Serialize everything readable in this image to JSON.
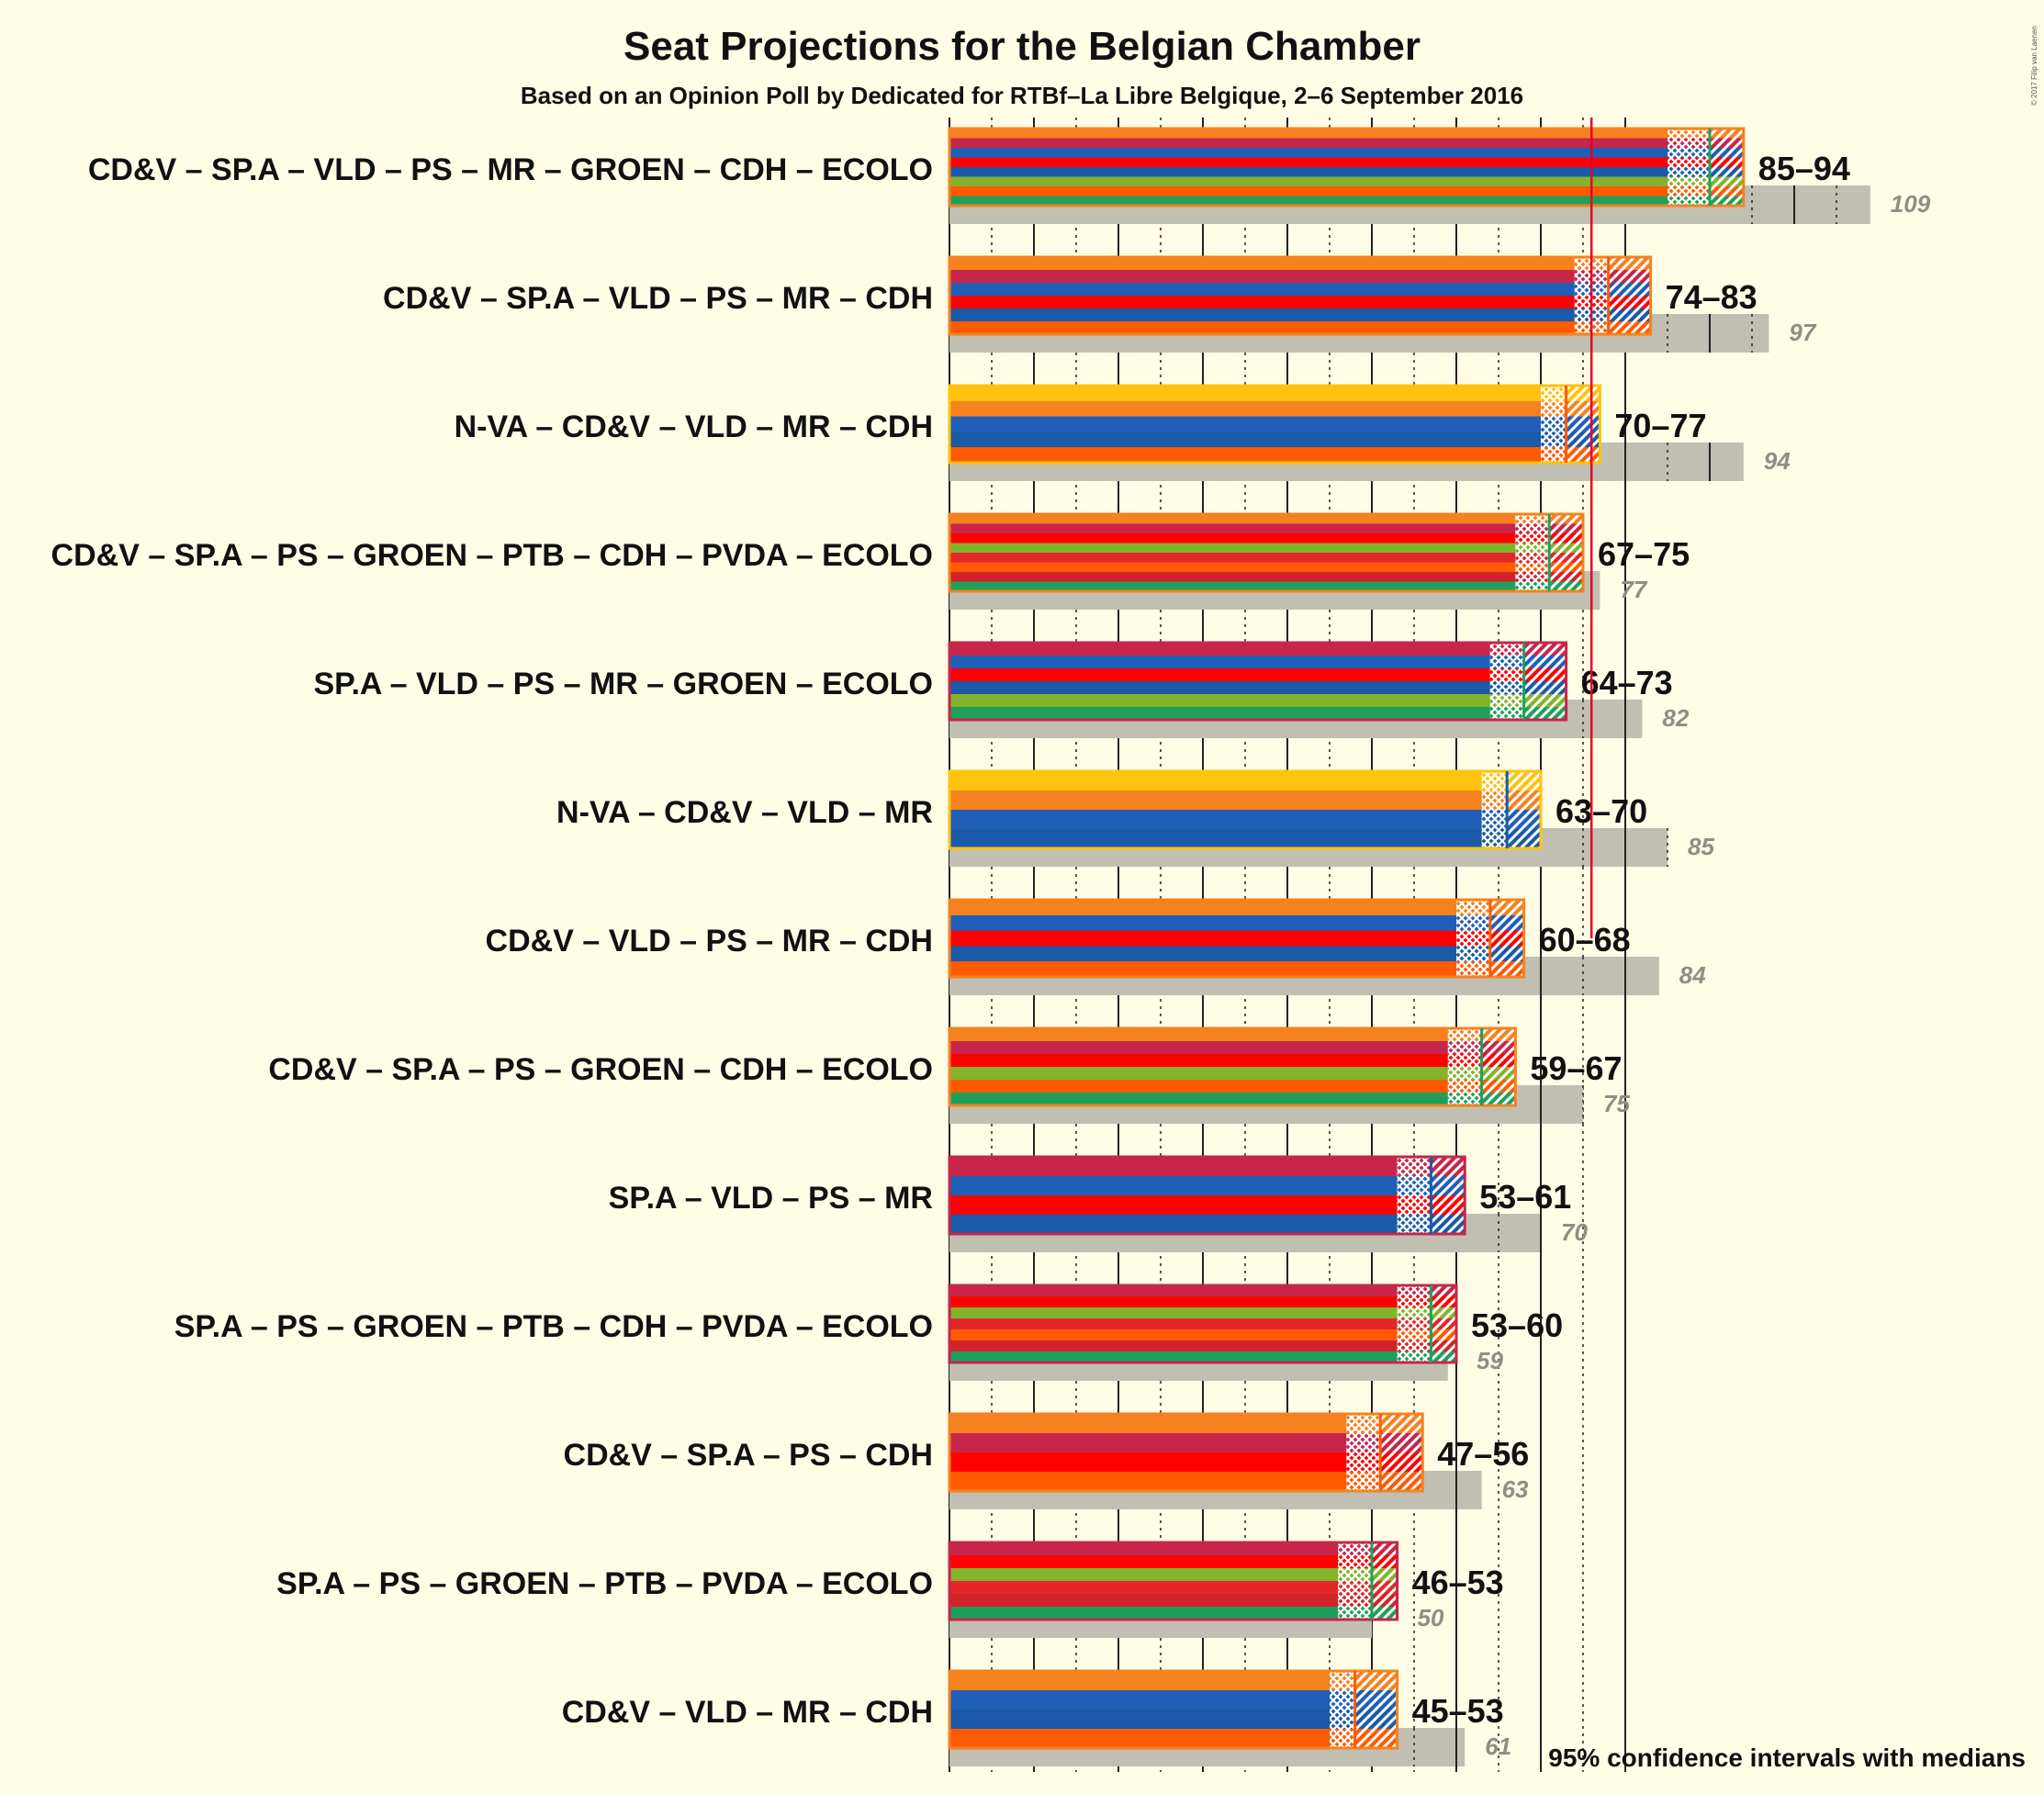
{
  "title": "Seat Projections for the Belgian Chamber",
  "subtitle": "Based on an Opinion Poll by Dedicated for RTBf–La Libre Belgique, 2–6 September 2016",
  "footnote": "95% confidence intervals with medians",
  "copyright": "© 2017 Filip van Laenen",
  "colors": {
    "background": "#fffde6",
    "last_result_bar": "#c0bfb2",
    "majority_line": "#e4002b",
    "parties": {
      "CD&V": "#f5821f",
      "SP.A": "#c8254a",
      "VLD": "#1f5fb8",
      "PS": "#ff0000",
      "MR": "#1a5aa8",
      "GROEN": "#83b32b",
      "CDH": "#ff5a00",
      "ECOLO": "#1fa05a",
      "N-VA": "#ffc20e",
      "PTB": "#e3262a",
      "PVDA": "#d2232a"
    }
  },
  "chart_data": {
    "type": "bar",
    "orientation": "horizontal",
    "x_range": [
      0,
      150
    ],
    "majority_threshold": 76,
    "grid_major_step": 10,
    "grid_minor_step": 5,
    "legend": "bottom-right",
    "coalitions": [
      {
        "label": "CD&V – SP.A – VLD – PS – MR – GROEN – CDH – ECOLO",
        "parties": [
          "CD&V",
          "SP.A",
          "VLD",
          "PS",
          "MR",
          "GROEN",
          "CDH",
          "ECOLO"
        ],
        "low": 85,
        "median": 90,
        "high": 94,
        "range_label": "85–94",
        "last": 109,
        "last_label": "109"
      },
      {
        "label": "CD&V – SP.A – VLD – PS – MR – CDH",
        "parties": [
          "CD&V",
          "SP.A",
          "VLD",
          "PS",
          "MR",
          "CDH"
        ],
        "low": 74,
        "median": 78,
        "high": 83,
        "range_label": "74–83",
        "last": 97,
        "last_label": "97"
      },
      {
        "label": "N-VA – CD&V – VLD – MR – CDH",
        "parties": [
          "N-VA",
          "CD&V",
          "VLD",
          "MR",
          "CDH"
        ],
        "low": 70,
        "median": 73,
        "high": 77,
        "range_label": "70–77",
        "last": 94,
        "last_label": "94"
      },
      {
        "label": "CD&V – SP.A – PS – GROEN – PTB – CDH – PVDA – ECOLO",
        "parties": [
          "CD&V",
          "SP.A",
          "PS",
          "GROEN",
          "PTB",
          "CDH",
          "PVDA",
          "ECOLO"
        ],
        "low": 67,
        "median": 71,
        "high": 75,
        "range_label": "67–75",
        "last": 77,
        "last_label": "77"
      },
      {
        "label": "SP.A – VLD – PS – MR – GROEN – ECOLO",
        "parties": [
          "SP.A",
          "VLD",
          "PS",
          "MR",
          "GROEN",
          "ECOLO"
        ],
        "low": 64,
        "median": 68,
        "high": 73,
        "range_label": "64–73",
        "last": 82,
        "last_label": "82"
      },
      {
        "label": "N-VA – CD&V – VLD – MR",
        "parties": [
          "N-VA",
          "CD&V",
          "VLD",
          "MR"
        ],
        "low": 63,
        "median": 66,
        "high": 70,
        "range_label": "63–70",
        "last": 85,
        "last_label": "85"
      },
      {
        "label": "CD&V – VLD – PS – MR – CDH",
        "parties": [
          "CD&V",
          "VLD",
          "PS",
          "MR",
          "CDH"
        ],
        "low": 60,
        "median": 64,
        "high": 68,
        "range_label": "60–68",
        "last": 84,
        "last_label": "84"
      },
      {
        "label": "CD&V – SP.A – PS – GROEN – CDH – ECOLO",
        "parties": [
          "CD&V",
          "SP.A",
          "PS",
          "GROEN",
          "CDH",
          "ECOLO"
        ],
        "low": 59,
        "median": 63,
        "high": 67,
        "range_label": "59–67",
        "last": 75,
        "last_label": "75"
      },
      {
        "label": "SP.A – VLD – PS – MR",
        "parties": [
          "SP.A",
          "VLD",
          "PS",
          "MR"
        ],
        "low": 53,
        "median": 57,
        "high": 61,
        "range_label": "53–61",
        "last": 70,
        "last_label": "70"
      },
      {
        "label": "SP.A – PS – GROEN – PTB – CDH – PVDA – ECOLO",
        "parties": [
          "SP.A",
          "PS",
          "GROEN",
          "PTB",
          "CDH",
          "PVDA",
          "ECOLO"
        ],
        "low": 53,
        "median": 57,
        "high": 60,
        "range_label": "53–60",
        "last": 59,
        "last_label": "59"
      },
      {
        "label": "CD&V – SP.A – PS – CDH",
        "parties": [
          "CD&V",
          "SP.A",
          "PS",
          "CDH"
        ],
        "low": 47,
        "median": 51,
        "high": 56,
        "range_label": "47–56",
        "last": 63,
        "last_label": "63"
      },
      {
        "label": "SP.A – PS – GROEN – PTB – PVDA – ECOLO",
        "parties": [
          "SP.A",
          "PS",
          "GROEN",
          "PTB",
          "PVDA",
          "ECOLO"
        ],
        "low": 46,
        "median": 50,
        "high": 53,
        "range_label": "46–53",
        "last": 50,
        "last_label": "50"
      },
      {
        "label": "CD&V – VLD – MR – CDH",
        "parties": [
          "CD&V",
          "VLD",
          "MR",
          "CDH"
        ],
        "low": 45,
        "median": 48,
        "high": 53,
        "range_label": "45–53",
        "last": 61,
        "last_label": "61"
      }
    ]
  }
}
